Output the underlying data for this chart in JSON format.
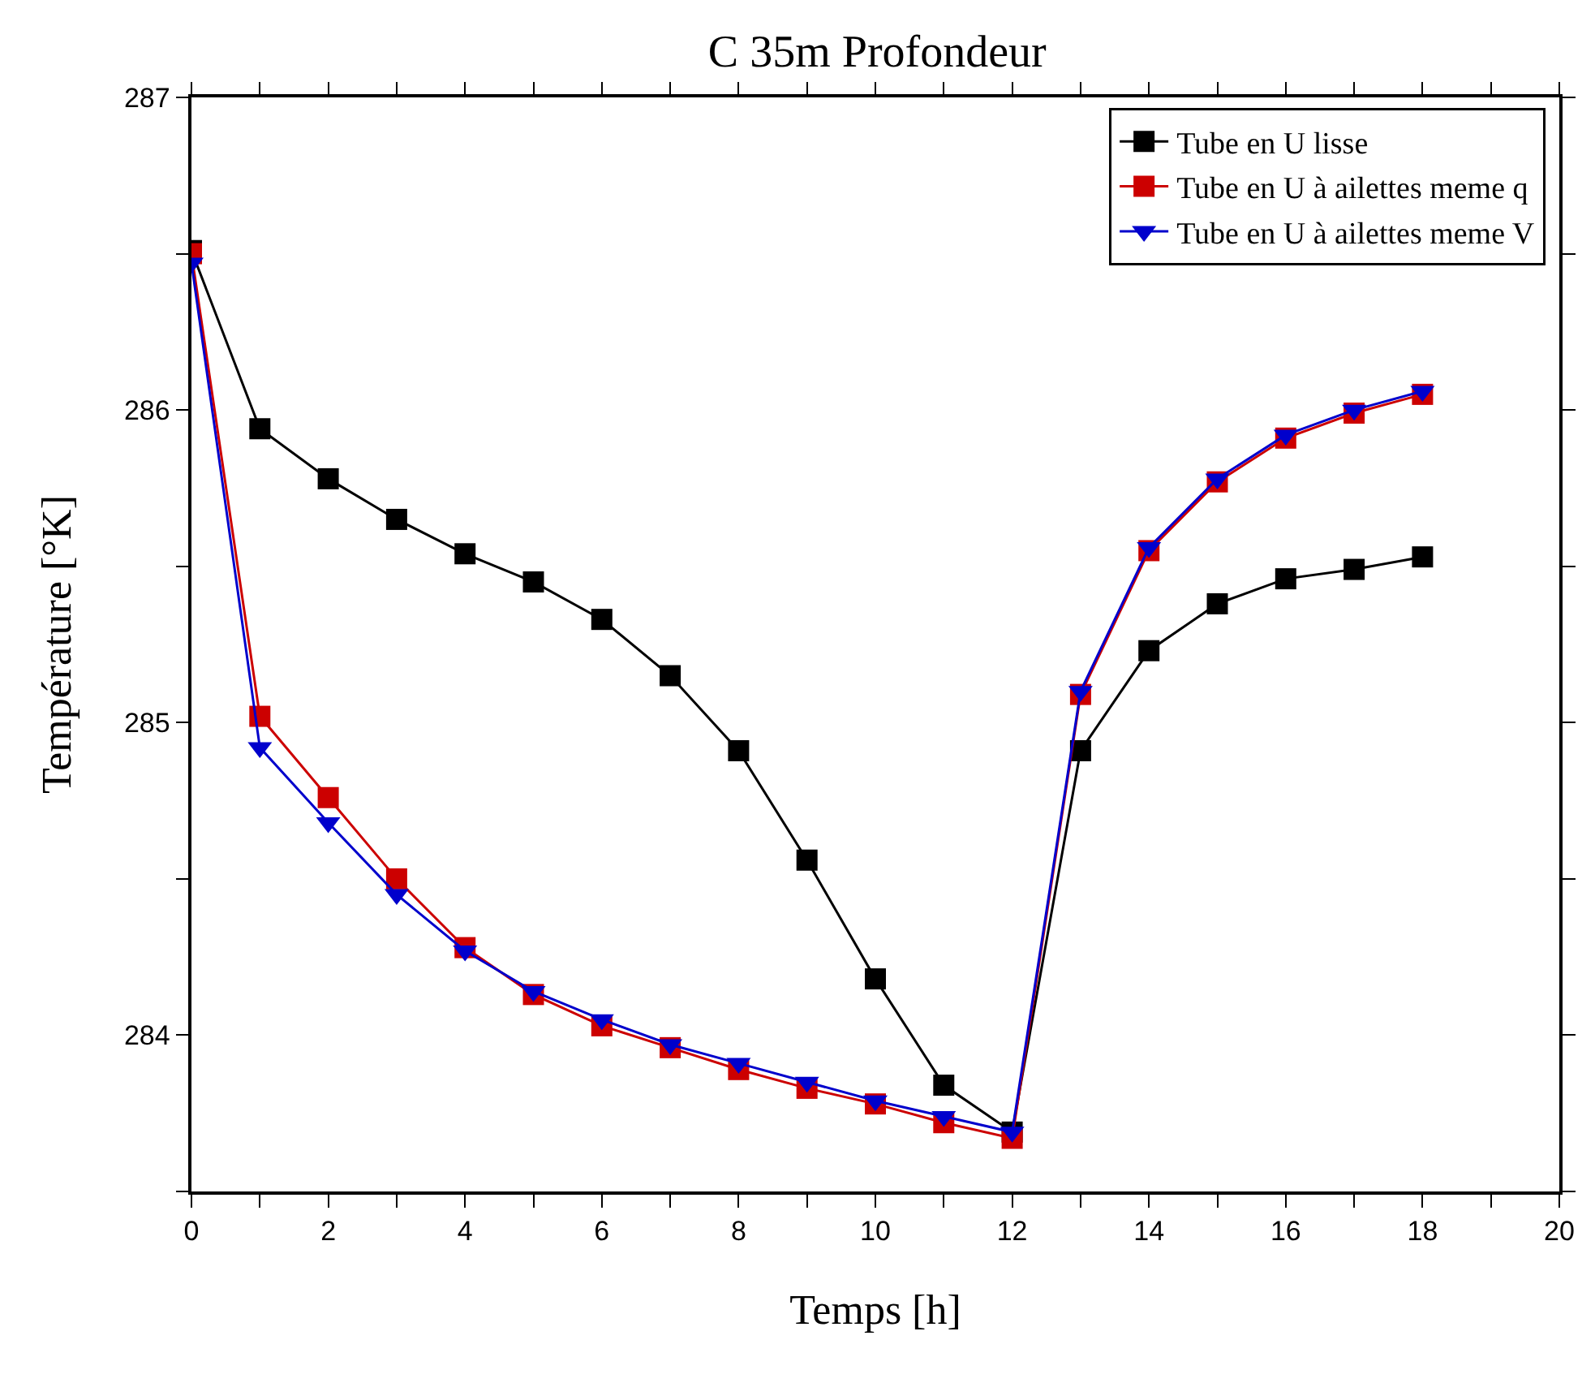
{
  "chart_data": {
    "type": "line",
    "title": "C 35m Profondeur",
    "xlabel": "Temps [h]",
    "ylabel": "Température [°K]",
    "x": [
      0,
      1,
      2,
      3,
      4,
      5,
      6,
      7,
      8,
      9,
      10,
      11,
      12,
      13,
      14,
      15,
      16,
      17,
      18
    ],
    "series": [
      {
        "name": "Tube en U lisse",
        "color": "#000000",
        "marker": "square",
        "values": [
          286.51,
          285.94,
          285.78,
          285.65,
          285.54,
          285.45,
          285.33,
          285.15,
          284.91,
          284.56,
          284.18,
          283.84,
          283.69,
          284.91,
          285.23,
          285.38,
          285.46,
          285.49,
          285.53
        ]
      },
      {
        "name": "Tube en U à ailettes meme q",
        "color": "#cc0000",
        "marker": "square",
        "values": [
          286.5,
          285.02,
          284.76,
          284.5,
          284.28,
          284.13,
          284.03,
          283.96,
          283.89,
          283.83,
          283.78,
          283.72,
          283.67,
          285.09,
          285.55,
          285.77,
          285.91,
          285.99,
          286.05
        ]
      },
      {
        "name": "Tube en U à ailettes meme V",
        "color": "#0000cc",
        "marker": "triangle",
        "values": [
          286.47,
          284.92,
          284.68,
          284.45,
          284.27,
          284.14,
          284.05,
          283.97,
          283.91,
          283.85,
          283.79,
          283.74,
          283.69,
          285.1,
          285.56,
          285.78,
          285.92,
          286.0,
          286.06
        ]
      }
    ],
    "xlim": [
      0,
      20
    ],
    "xticks": [
      0,
      {
        "value": 1,
        "label": null
      },
      2,
      {
        "value": 3,
        "label": null
      },
      4,
      {
        "value": 5,
        "label": null
      },
      6,
      {
        "value": 7,
        "label": null
      },
      8,
      {
        "value": 9,
        "label": null
      },
      10,
      {
        "value": 11,
        "label": null
      },
      12,
      {
        "value": 13,
        "label": null
      },
      14,
      {
        "value": 15,
        "label": null
      },
      16,
      {
        "value": 17,
        "label": null
      },
      18,
      {
        "value": 19,
        "label": null
      },
      20
    ],
    "ylim": [
      283.5,
      287
    ],
    "yticks": [
      {
        "value": 283.5,
        "label": null
      },
      284,
      {
        "value": 284.5,
        "label": null
      },
      285,
      {
        "value": 285.5,
        "label": null
      },
      286,
      {
        "value": 286.5,
        "label": null
      },
      287
    ],
    "legend": "top right",
    "line_style": "solid"
  }
}
